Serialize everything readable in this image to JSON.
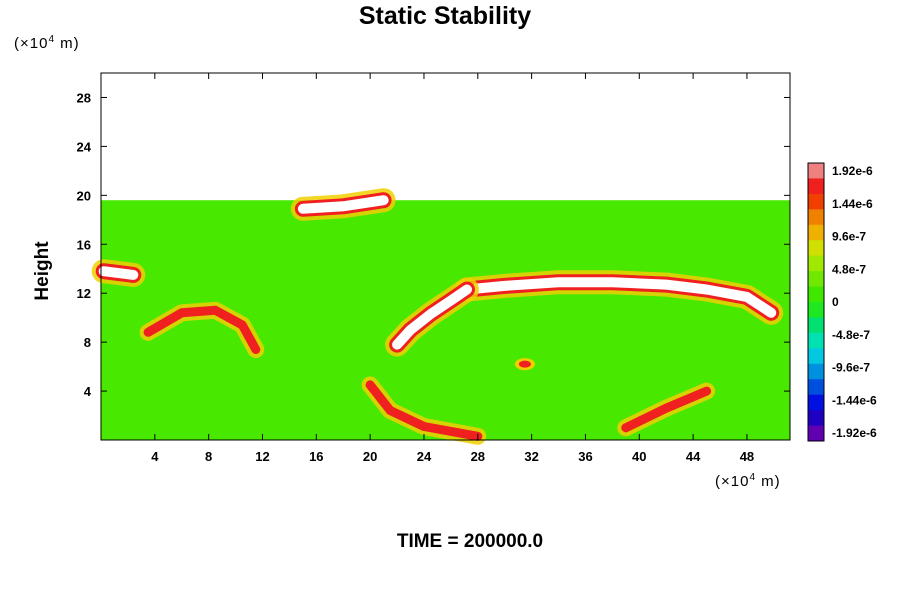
{
  "chart_data": {
    "type": "heatmap",
    "title": "Static Stability",
    "ylabel": "Height",
    "y_unit_prefix": "(×10",
    "y_unit_exp": "4",
    "y_unit_suffix": " m)",
    "x_unit_prefix": "(×10",
    "x_unit_exp": "4",
    "x_unit_suffix": " m)",
    "x_ticks": [
      4,
      8,
      12,
      16,
      20,
      24,
      28,
      32,
      36,
      40,
      44,
      48
    ],
    "y_ticks": [
      4,
      8,
      12,
      16,
      20,
      24,
      28
    ],
    "xlim": [
      0,
      51.2
    ],
    "ylim": [
      0,
      30
    ],
    "field_top_height": 19.6,
    "background_value": 0,
    "colorbar": {
      "labels": [
        "1.92e-6",
        "1.44e-6",
        "9.6e-7",
        "4.8e-7",
        "0",
        "-4.8e-7",
        "-9.6e-7",
        "-1.44e-6",
        "-1.92e-6"
      ],
      "colors": [
        "#f08080",
        "#f02020",
        "#f04000",
        "#f08000",
        "#f0b000",
        "#d0e000",
        "#a0e800",
        "#70e800",
        "#40e800",
        "#20e820",
        "#00e070",
        "#00e0b0",
        "#00c8e0",
        "#0090e0",
        "#0050e0",
        "#0010e0",
        "#2000c0",
        "#6000b0"
      ]
    },
    "features": [
      {
        "name": "upper-band",
        "path": [
          [
            27.2,
            12.3
          ],
          [
            30,
            12.6
          ],
          [
            34,
            12.9
          ],
          [
            38,
            12.9
          ],
          [
            42,
            12.7
          ],
          [
            45,
            12.3
          ],
          [
            48,
            11.7
          ],
          [
            49.8,
            10.4
          ]
        ],
        "value": ">1.92e-6"
      },
      {
        "name": "diagonal-band",
        "path": [
          [
            22.0,
            7.8
          ],
          [
            23,
            9.0
          ],
          [
            24.5,
            10.3
          ],
          [
            26,
            11.4
          ],
          [
            27.2,
            12.3
          ]
        ],
        "value": ">1.92e-6"
      },
      {
        "name": "top-streak",
        "path": [
          [
            15,
            18.9
          ],
          [
            18,
            19.1
          ],
          [
            21,
            19.6
          ]
        ],
        "value": ">1.92e-6"
      },
      {
        "name": "left-arc",
        "path": [
          [
            3.5,
            8.8
          ],
          [
            6,
            10.4
          ],
          [
            8.5,
            10.6
          ],
          [
            10.5,
            9.4
          ],
          [
            11.5,
            7.4
          ]
        ],
        "value": "1.92e-6"
      },
      {
        "name": "dome-bottom",
        "path": [
          [
            20,
            4.5
          ],
          [
            21.5,
            2.4
          ],
          [
            24,
            1.1
          ],
          [
            28,
            0.3
          ]
        ],
        "value": "1.92e-6"
      },
      {
        "name": "right-lower-streak",
        "path": [
          [
            39,
            1.0
          ],
          [
            42,
            2.6
          ],
          [
            45,
            4.0
          ]
        ],
        "value": "1.44e-6"
      },
      {
        "name": "left-blob",
        "path": [
          [
            0.2,
            13.8
          ],
          [
            2.4,
            13.5
          ]
        ],
        "value": ">1.92e-6"
      },
      {
        "name": "center-spot",
        "path": [
          [
            31.5,
            6.2
          ]
        ],
        "value": "1.92e-6"
      }
    ],
    "time_label": "TIME = 200000.0",
    "grid": false,
    "legend": "colorbar-right"
  }
}
